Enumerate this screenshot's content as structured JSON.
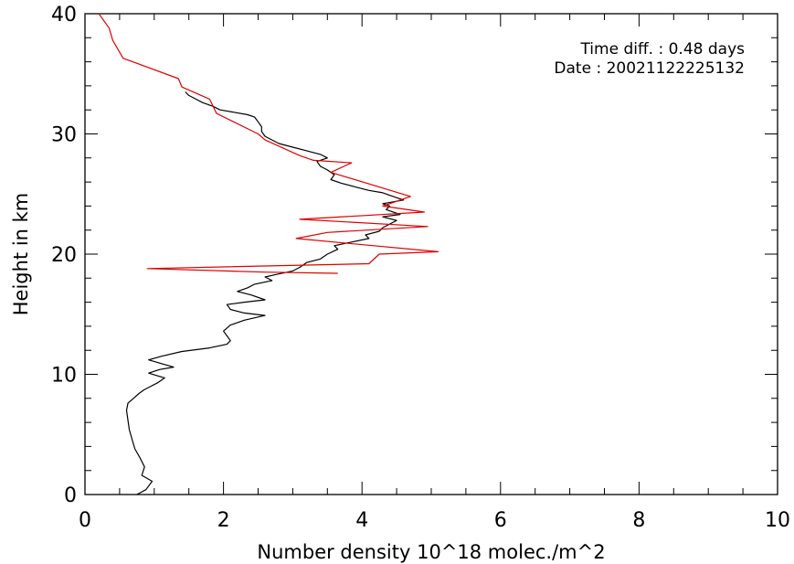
{
  "chart_data": {
    "type": "line",
    "xlabel": "Number density 10^18 molec./m^2",
    "ylabel": "Height in km",
    "xlim": [
      0,
      10
    ],
    "ylim": [
      0,
      40
    ],
    "x_ticks": [
      0,
      2,
      4,
      6,
      8,
      10
    ],
    "y_ticks": [
      0,
      10,
      20,
      30,
      40
    ],
    "grid": false,
    "annotations": [
      "Time diff. : 0.48 days",
      "Date : 20021122225132"
    ],
    "series": [
      {
        "color": "#000000",
        "points": [
          [
            0.75,
            0.0
          ],
          [
            0.88,
            0.4
          ],
          [
            0.97,
            1.1
          ],
          [
            0.82,
            1.6
          ],
          [
            0.86,
            2.3
          ],
          [
            0.8,
            3.0
          ],
          [
            0.72,
            3.8
          ],
          [
            0.68,
            4.6
          ],
          [
            0.64,
            5.4
          ],
          [
            0.62,
            6.2
          ],
          [
            0.6,
            7.0
          ],
          [
            0.62,
            7.6
          ],
          [
            0.7,
            8.0
          ],
          [
            0.78,
            8.4
          ],
          [
            0.85,
            8.7
          ],
          [
            0.95,
            9.0
          ],
          [
            1.05,
            9.3
          ],
          [
            1.15,
            9.7
          ],
          [
            0.92,
            10.1
          ],
          [
            1.08,
            10.4
          ],
          [
            1.28,
            10.6
          ],
          [
            1.1,
            10.9
          ],
          [
            0.92,
            11.2
          ],
          [
            1.1,
            11.5
          ],
          [
            1.4,
            11.9
          ],
          [
            1.8,
            12.2
          ],
          [
            2.05,
            12.5
          ],
          [
            2.1,
            12.8
          ],
          [
            2.05,
            13.2
          ],
          [
            2.0,
            13.6
          ],
          [
            2.1,
            14.1
          ],
          [
            2.3,
            14.5
          ],
          [
            2.6,
            14.9
          ],
          [
            2.3,
            15.1
          ],
          [
            2.1,
            15.4
          ],
          [
            2.05,
            15.8
          ],
          [
            2.3,
            16.0
          ],
          [
            2.6,
            16.2
          ],
          [
            2.4,
            16.6
          ],
          [
            2.2,
            16.9
          ],
          [
            2.35,
            17.2
          ],
          [
            2.45,
            17.5
          ],
          [
            2.7,
            17.8
          ],
          [
            2.6,
            18.1
          ],
          [
            2.75,
            18.3
          ],
          [
            3.0,
            18.6
          ],
          [
            3.1,
            18.9
          ],
          [
            3.2,
            19.3
          ],
          [
            3.4,
            19.6
          ],
          [
            3.5,
            20.0
          ],
          [
            3.65,
            20.4
          ],
          [
            3.6,
            20.7
          ],
          [
            3.85,
            21.0
          ],
          [
            4.1,
            21.3
          ],
          [
            4.05,
            21.6
          ],
          [
            4.25,
            21.9
          ],
          [
            4.3,
            22.2
          ],
          [
            4.4,
            22.5
          ],
          [
            4.5,
            22.8
          ],
          [
            4.3,
            23.1
          ],
          [
            4.55,
            23.3
          ],
          [
            4.35,
            23.7
          ],
          [
            4.4,
            24.0
          ],
          [
            4.3,
            24.2
          ],
          [
            4.6,
            24.5
          ],
          [
            4.45,
            24.8
          ],
          [
            4.3,
            25.1
          ],
          [
            4.1,
            25.3
          ],
          [
            3.9,
            25.6
          ],
          [
            3.7,
            25.9
          ],
          [
            3.55,
            26.2
          ],
          [
            3.6,
            26.6
          ],
          [
            3.5,
            27.0
          ],
          [
            3.4,
            27.3
          ],
          [
            3.35,
            27.7
          ],
          [
            3.5,
            28.0
          ],
          [
            3.4,
            28.3
          ],
          [
            3.2,
            28.6
          ],
          [
            3.0,
            28.9
          ],
          [
            2.8,
            29.2
          ],
          [
            2.7,
            29.5
          ],
          [
            2.6,
            29.8
          ],
          [
            2.55,
            30.2
          ],
          [
            2.55,
            30.6
          ],
          [
            2.5,
            31.0
          ],
          [
            2.45,
            31.4
          ],
          [
            2.35,
            31.6
          ],
          [
            2.15,
            31.8
          ],
          [
            1.95,
            32.0
          ],
          [
            1.85,
            32.3
          ],
          [
            1.7,
            32.6
          ],
          [
            1.6,
            32.9
          ],
          [
            1.5,
            33.2
          ],
          [
            1.45,
            33.5
          ]
        ]
      },
      {
        "color": "#e00000",
        "points": [
          [
            3.65,
            18.4
          ],
          [
            2.6,
            18.5
          ],
          [
            0.9,
            18.8
          ],
          [
            4.1,
            19.2
          ],
          [
            4.25,
            20.0
          ],
          [
            5.1,
            20.2
          ],
          [
            3.05,
            21.3
          ],
          [
            3.5,
            21.8
          ],
          [
            4.95,
            22.3
          ],
          [
            3.1,
            22.9
          ],
          [
            4.9,
            23.5
          ],
          [
            4.3,
            24.0
          ],
          [
            4.7,
            24.8
          ],
          [
            3.55,
            26.8
          ],
          [
            3.85,
            27.6
          ],
          [
            3.3,
            27.8
          ],
          [
            3.1,
            28.2
          ],
          [
            2.6,
            29.5
          ],
          [
            2.5,
            30.0
          ],
          [
            1.9,
            31.7
          ],
          [
            1.8,
            32.9
          ],
          [
            1.4,
            33.9
          ],
          [
            1.35,
            34.6
          ],
          [
            0.55,
            36.3
          ],
          [
            0.5,
            36.8
          ],
          [
            0.4,
            37.8
          ],
          [
            0.35,
            38.8
          ],
          [
            0.2,
            40.0
          ]
        ]
      }
    ]
  }
}
